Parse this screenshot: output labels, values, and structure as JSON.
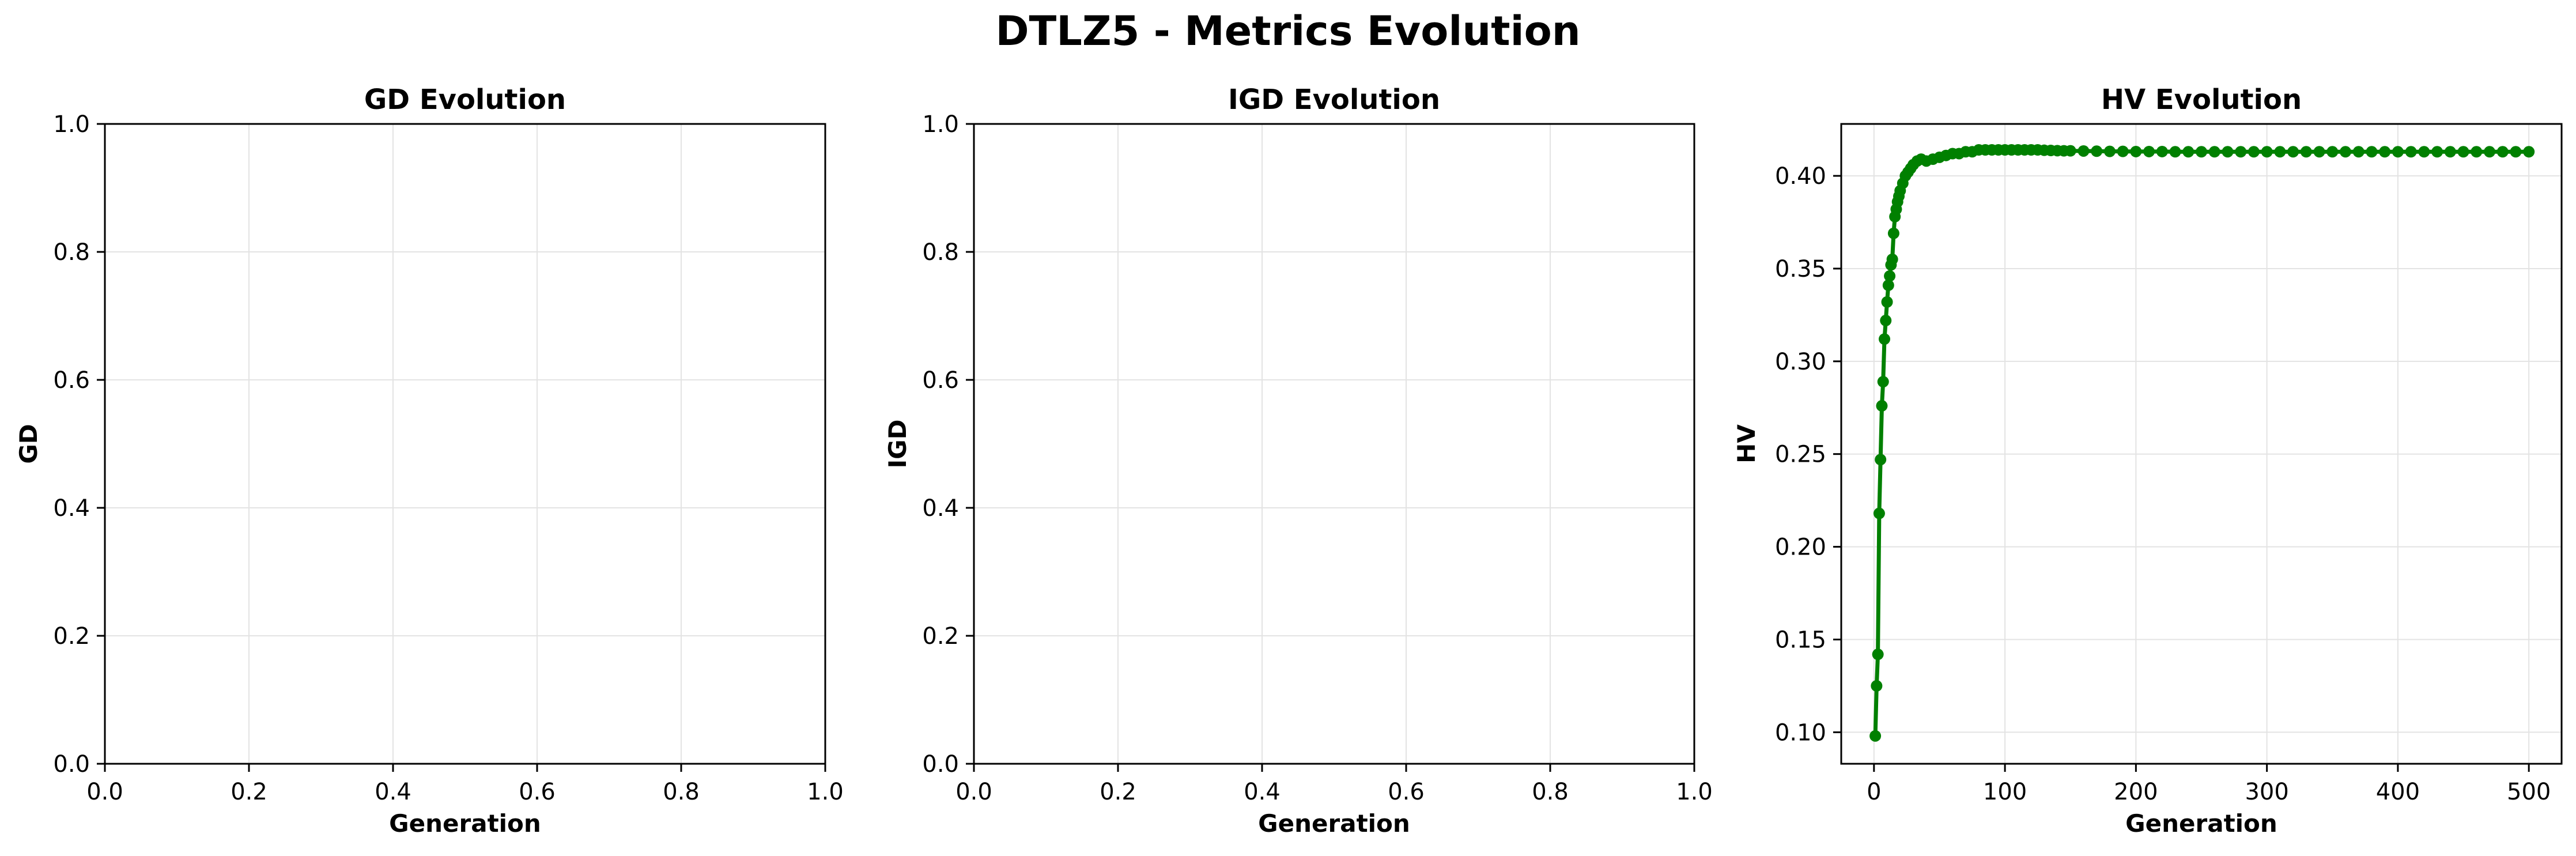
{
  "figure": {
    "title": "DTLZ5 - Metrics Evolution"
  },
  "chart_data": [
    {
      "type": "line",
      "title": "GD Evolution",
      "xlabel": "Generation",
      "ylabel": "GD",
      "xlim": [
        0.0,
        1.0
      ],
      "ylim": [
        0.0,
        1.0
      ],
      "xticks": [
        "0.0",
        "0.2",
        "0.4",
        "0.6",
        "0.8",
        "1.0"
      ],
      "yticks": [
        "0.0",
        "0.2",
        "0.4",
        "0.6",
        "0.8",
        "1.0"
      ],
      "grid": true,
      "series": []
    },
    {
      "type": "line",
      "title": "IGD Evolution",
      "xlabel": "Generation",
      "ylabel": "IGD",
      "xlim": [
        0.0,
        1.0
      ],
      "ylim": [
        0.0,
        1.0
      ],
      "xticks": [
        "0.0",
        "0.2",
        "0.4",
        "0.6",
        "0.8",
        "1.0"
      ],
      "yticks": [
        "0.0",
        "0.2",
        "0.4",
        "0.6",
        "0.8",
        "1.0"
      ],
      "grid": true,
      "series": []
    },
    {
      "type": "line",
      "title": "HV Evolution",
      "xlabel": "Generation",
      "ylabel": "HV",
      "xlim": [
        -25,
        525
      ],
      "ylim": [
        0.083,
        0.428
      ],
      "xticks": [
        "0",
        "100",
        "200",
        "300",
        "400",
        "500"
      ],
      "yticks": [
        "0.10",
        "0.15",
        "0.20",
        "0.25",
        "0.30",
        "0.35",
        "0.40"
      ],
      "grid": true,
      "color": "#008000",
      "series": [
        {
          "x": [
            1,
            2,
            3,
            4,
            5,
            6,
            7,
            8,
            9,
            10,
            11,
            12,
            13,
            14,
            15,
            16,
            17,
            18,
            19,
            20,
            22,
            24,
            26,
            28,
            30,
            33,
            36,
            40,
            45,
            50,
            55,
            60,
            65,
            70,
            75,
            80,
            85,
            90,
            95,
            100,
            105,
            110,
            115,
            120,
            125,
            130,
            135,
            140,
            145,
            150,
            160,
            170,
            180,
            190,
            200,
            210,
            220,
            230,
            240,
            250,
            260,
            270,
            280,
            290,
            300,
            310,
            320,
            330,
            340,
            350,
            360,
            370,
            380,
            390,
            400,
            410,
            420,
            430,
            440,
            450,
            460,
            470,
            480,
            490,
            500
          ],
          "y": [
            0.098,
            0.125,
            0.142,
            0.218,
            0.247,
            0.276,
            0.289,
            0.312,
            0.322,
            0.332,
            0.341,
            0.346,
            0.352,
            0.355,
            0.369,
            0.378,
            0.382,
            0.386,
            0.389,
            0.392,
            0.396,
            0.4,
            0.402,
            0.404,
            0.406,
            0.408,
            0.409,
            0.408,
            0.409,
            0.41,
            0.411,
            0.412,
            0.412,
            0.413,
            0.413,
            0.414,
            0.414,
            0.414,
            0.414,
            0.414,
            0.414,
            0.414,
            0.414,
            0.414,
            0.414,
            0.4138,
            0.4137,
            0.4136,
            0.4135,
            0.4135,
            0.4134,
            0.4133,
            0.4132,
            0.4132,
            0.4131,
            0.4131,
            0.4131,
            0.413,
            0.413,
            0.413,
            0.413,
            0.413,
            0.413,
            0.413,
            0.413,
            0.413,
            0.413,
            0.413,
            0.413,
            0.413,
            0.413,
            0.413,
            0.413,
            0.413,
            0.413,
            0.413,
            0.413,
            0.413,
            0.413,
            0.413,
            0.413,
            0.413,
            0.413,
            0.413,
            0.413
          ]
        }
      ]
    }
  ]
}
